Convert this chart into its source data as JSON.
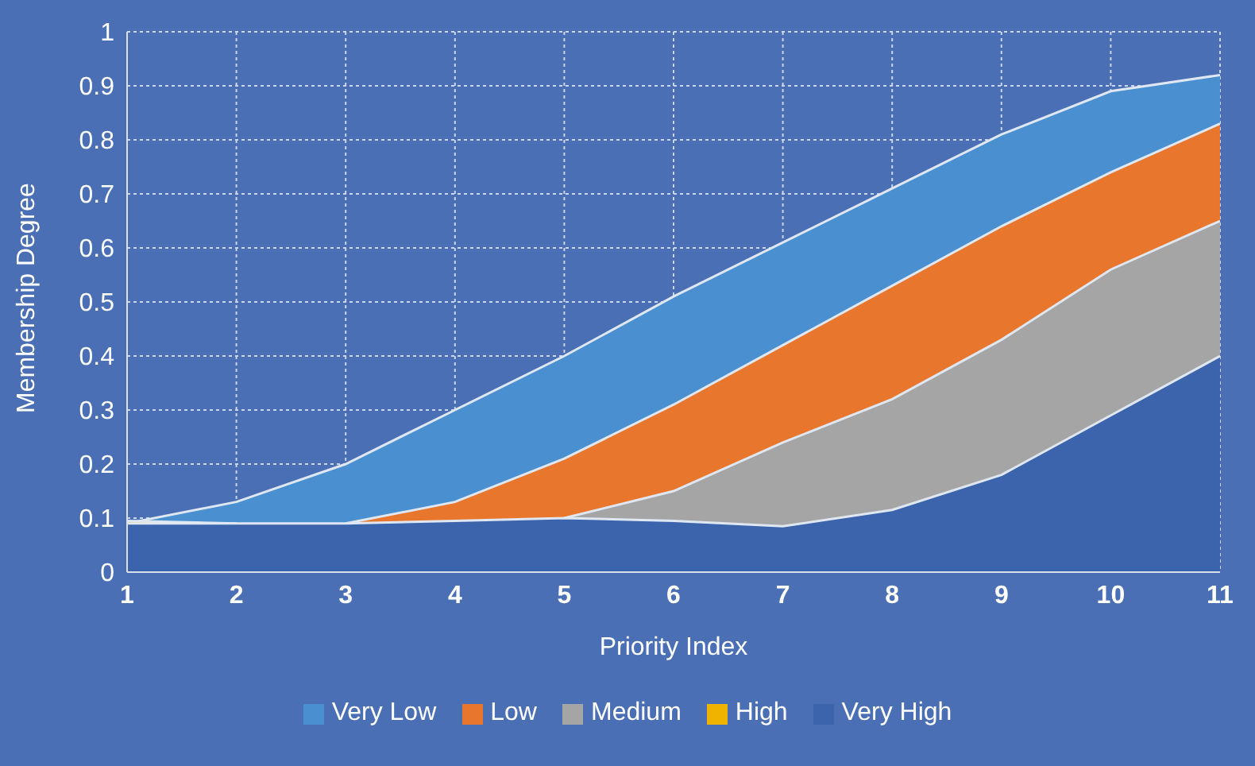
{
  "chart_data": {
    "type": "area",
    "xlabel": "Priority Index",
    "ylabel": "Membership Degree",
    "x": [
      1,
      2,
      3,
      4,
      5,
      6,
      7,
      8,
      9,
      10,
      11
    ],
    "series": [
      {
        "name": "Very Low",
        "color": "#4a8fcf",
        "values": [
          0.09,
          0.13,
          0.2,
          0.3,
          0.4,
          0.51,
          0.61,
          0.71,
          0.81,
          0.89,
          0.92
        ]
      },
      {
        "name": "Low",
        "color": "#e8762c",
        "values": [
          null,
          null,
          0.09,
          0.13,
          0.21,
          0.31,
          0.42,
          0.53,
          0.64,
          0.74,
          0.83
        ]
      },
      {
        "name": "Medium",
        "color": "#a5a5a5",
        "values": [
          null,
          null,
          null,
          null,
          0.1,
          0.15,
          0.24,
          0.32,
          0.43,
          0.56,
          0.65
        ]
      },
      {
        "name": "High",
        "color": "#f0b400",
        "values": [
          0.095,
          0.09,
          null,
          null,
          null,
          null,
          null,
          null,
          null,
          null,
          null
        ]
      },
      {
        "name": "Very High",
        "color": "#3c64ac",
        "values": [
          0.09,
          0.09,
          0.09,
          0.095,
          0.1,
          0.095,
          0.085,
          0.115,
          0.18,
          0.29,
          0.4
        ]
      }
    ],
    "xlim": [
      1,
      11
    ],
    "xticks": [
      1,
      2,
      3,
      4,
      5,
      6,
      7,
      8,
      9,
      10,
      11
    ],
    "ylim": [
      0,
      1
    ],
    "yticks": [
      0,
      0.1,
      0.2,
      0.3,
      0.4,
      0.5,
      0.6,
      0.7,
      0.8,
      0.9,
      1
    ],
    "grid": true,
    "legend": "bottom"
  }
}
